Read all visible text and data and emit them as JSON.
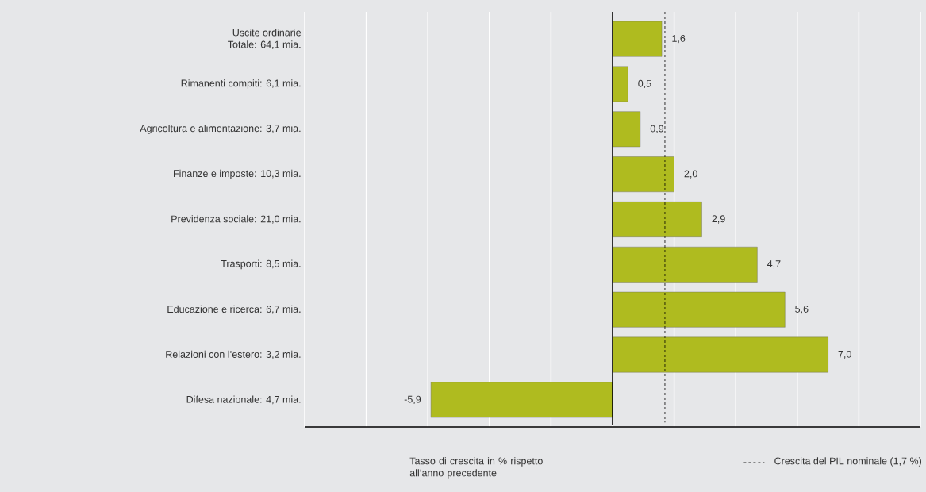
{
  "chart_data": {
    "type": "bar",
    "orientation": "horizontal",
    "categories": [
      "Uscite ordinarie\nTotale: 64,1 mia.",
      "Rimanenti compiti: 6,1 mia.",
      "Agricoltura e alimentazione: 3,7 mia.",
      "Finanze e imposte: 10,3 mia.",
      "Previdenza sociale: 21,0 mia.",
      "Trasporti: 8,5 mia.",
      "Educazione e ricerca: 6,7 mia.",
      "Relazioni con l’estero: 3,2 mia.",
      "Difesa nazionale: 4,7 mia."
    ],
    "values": [
      1.6,
      0.5,
      0.9,
      2.0,
      2.9,
      4.7,
      5.6,
      7.0,
      -5.9
    ],
    "value_labels": [
      "1,6",
      "0,5",
      "0,9",
      "2,0",
      "2,9",
      "4,7",
      "5,6",
      "7,0",
      "-5,9"
    ],
    "color": "#afbb1f",
    "xlim": [
      -10,
      10
    ],
    "xticks": [
      {
        "value": -10,
        "label": null
      },
      {
        "value": -8,
        "label": null
      },
      {
        "value": -6,
        "label": null
      },
      {
        "value": -4,
        "label": null
      },
      {
        "value": -2,
        "label": null
      },
      {
        "value": 0,
        "label": null
      },
      {
        "value": 2,
        "label": null
      },
      {
        "value": 4,
        "label": null
      },
      {
        "value": 6,
        "label": null
      },
      {
        "value": 8,
        "label": null
      },
      {
        "value": 10,
        "label": null
      }
    ],
    "grid": "x",
    "tick_labels": "y",
    "xlabel": "Tasso di crescita in % rispetto all’anno precedente",
    "ref_lines": [
      {
        "axis": "x",
        "value": 1.7,
        "label": "Crescita del PIL nominale (1,7 %)",
        "line_style": "dashed"
      }
    ]
  }
}
